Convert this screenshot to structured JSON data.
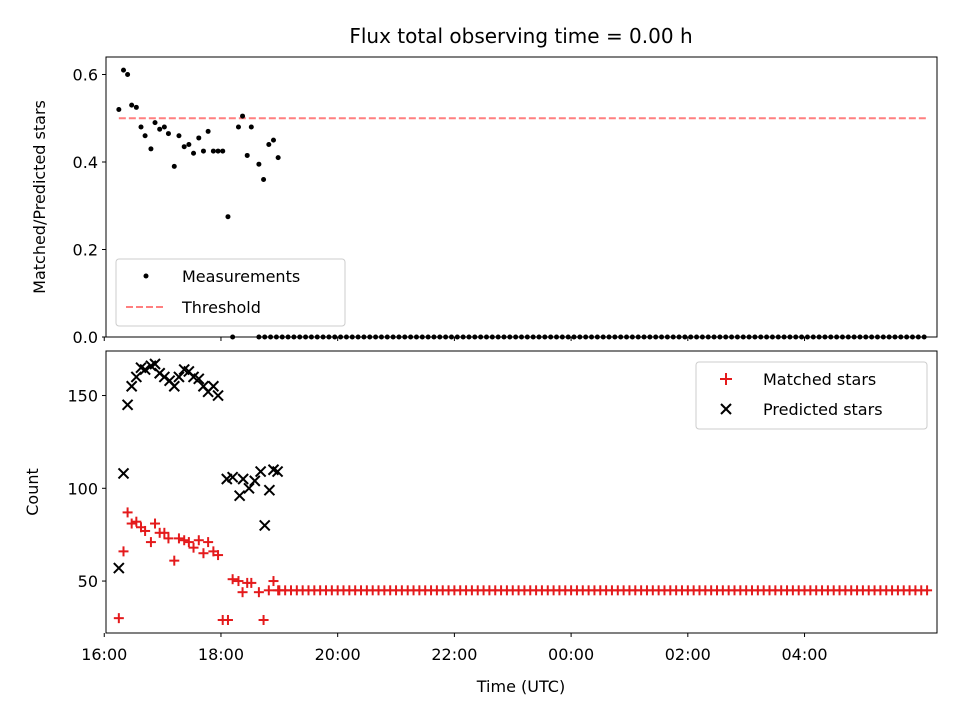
{
  "title": "Flux total observing time = 0.00 h",
  "colors": {
    "measure": "#000000",
    "threshold": "#ff7f7f",
    "matched": "#e41a1c",
    "predicted": "#000000"
  },
  "chart_data": [
    {
      "type": "scatter",
      "ylabel": "Matched/Predicted stars",
      "ylim": [
        0,
        0.64
      ],
      "yticks": [
        "0.0",
        "0.2",
        "0.4",
        "0.6"
      ],
      "ytick_values": [
        0,
        0.2,
        0.4,
        0.6
      ],
      "xlim": [
        16.03,
        30.27
      ],
      "legend_position": "lower-left",
      "threshold": {
        "name": "Threshold",
        "y": 0.5,
        "x": [
          16.25,
          30.1
        ]
      },
      "measurements": {
        "name": "Measurements",
        "x": [
          16.25,
          16.33,
          16.4,
          16.47,
          16.55,
          16.63,
          16.7,
          16.8,
          16.87,
          16.95,
          17.03,
          17.1,
          17.2,
          17.28,
          17.37,
          17.45,
          17.53,
          17.62,
          17.7,
          17.78,
          17.87,
          17.95,
          18.03,
          18.12,
          18.2,
          18.3,
          18.37,
          18.45,
          18.52,
          18.65,
          18.73,
          18.82,
          18.9,
          18.98
        ],
        "y": [
          0.52,
          0.61,
          0.6,
          0.53,
          0.525,
          0.48,
          0.46,
          0.43,
          0.49,
          0.475,
          0.48,
          0.465,
          0.39,
          0.46,
          0.435,
          0.44,
          0.42,
          0.455,
          0.425,
          0.47,
          0.425,
          0.425,
          0.425,
          0.275,
          0.0,
          0.48,
          0.505,
          0.415,
          0.48,
          0.395,
          0.36,
          0.44,
          0.45,
          0.41
        ],
        "zeros_from": 18.65,
        "zeros_to": 30.1,
        "zeros_step": 0.1
      }
    },
    {
      "type": "scatter",
      "xlabel": "Time (UTC)",
      "ylabel": "Count",
      "ylim": [
        22,
        174
      ],
      "yticks": [
        "50",
        "100",
        "150"
      ],
      "ytick_values": [
        50,
        100,
        150
      ],
      "xlim": [
        16.03,
        30.27
      ],
      "xticks": [
        "16:00",
        "18:00",
        "20:00",
        "22:00",
        "00:00",
        "02:00",
        "04:00"
      ],
      "xtick_values": [
        16,
        18,
        20,
        22,
        24,
        26,
        28
      ],
      "legend_position": "upper-right",
      "matched": {
        "name": "Matched stars",
        "x": [
          16.25,
          16.33,
          16.4,
          16.47,
          16.55,
          16.63,
          16.7,
          16.8,
          16.87,
          16.95,
          17.03,
          17.1,
          17.2,
          17.28,
          17.37,
          17.45,
          17.53,
          17.62,
          17.7,
          17.78,
          17.87,
          17.95,
          18.03,
          18.12,
          18.2,
          18.3,
          18.37,
          18.45,
          18.52,
          18.65,
          18.73,
          18.82,
          18.9,
          18.98
        ],
        "y": [
          30,
          66,
          87,
          81,
          82,
          79,
          77,
          71,
          81,
          76,
          76,
          73,
          61,
          73,
          72,
          71,
          68,
          72,
          65,
          71,
          66,
          64,
          29,
          29,
          51,
          50,
          44,
          49,
          49,
          44,
          29,
          45,
          50,
          45
        ],
        "flat_value": 45,
        "flat_from": 19.0,
        "flat_to": 30.1,
        "flat_step": 0.1
      },
      "predicted": {
        "name": "Predicted stars",
        "x": [
          16.25,
          16.33,
          16.4,
          16.47,
          16.55,
          16.63,
          16.7,
          16.8,
          16.87,
          16.95,
          17.03,
          17.12,
          17.2,
          17.28,
          17.37,
          17.45,
          17.53,
          17.62,
          17.7,
          17.78,
          17.87,
          17.95,
          18.1,
          18.2,
          18.32,
          18.38,
          18.48,
          18.58,
          18.68,
          18.75,
          18.83,
          18.9,
          18.97
        ],
        "y": [
          57,
          108,
          145,
          155,
          160,
          165,
          164,
          166,
          167,
          162,
          160,
          158,
          155,
          160,
          164,
          163,
          160,
          159,
          155,
          152,
          155,
          150,
          105,
          106,
          96,
          105,
          100,
          104,
          109,
          80,
          99,
          110,
          109
        ]
      }
    }
  ]
}
